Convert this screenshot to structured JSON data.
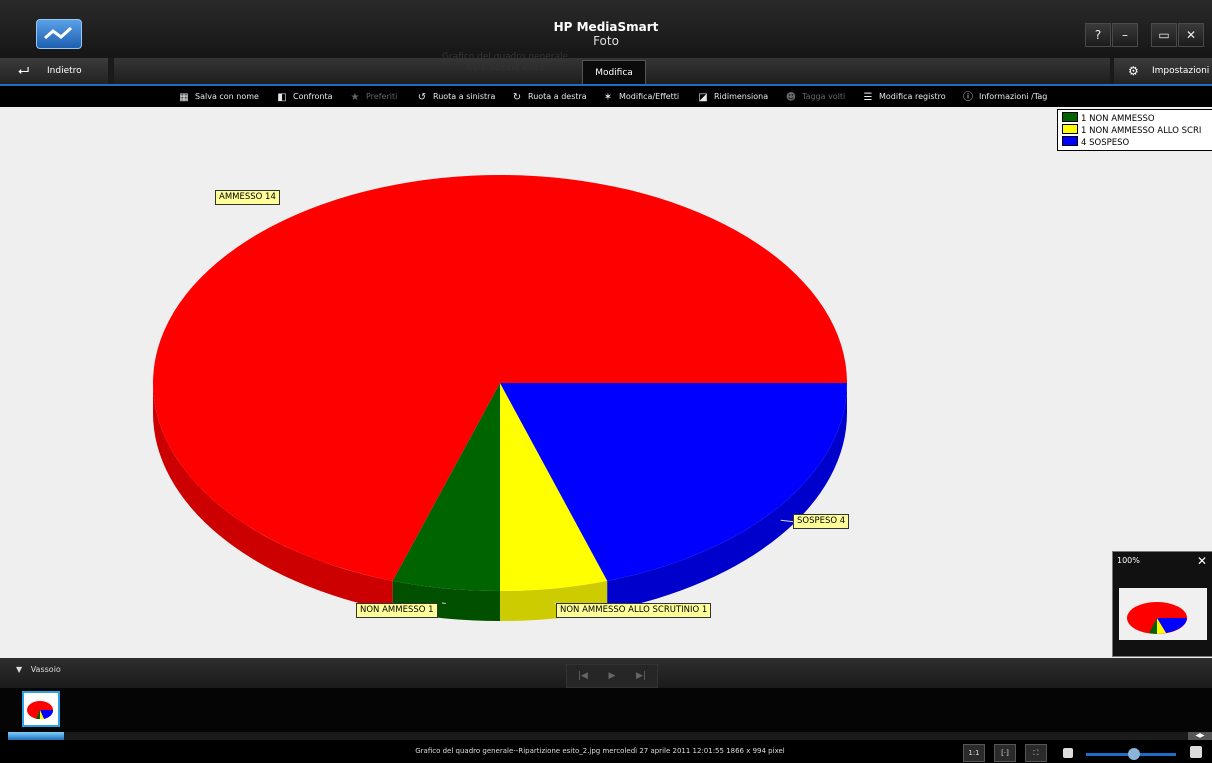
{
  "window": {
    "app_name": "HP MediaSmart",
    "section": "Foto",
    "help_label": "?",
    "minimize_label": "–",
    "restore_label": "▭",
    "close_label": "✕"
  },
  "nav": {
    "back_label": "Indietro",
    "ghost_title_1": "Grafico del quadro generale",
    "ghost_title_2": "Ripartizione esito",
    "active_tab": "Modifica",
    "settings_label": "Impostazioni"
  },
  "toolbar": {
    "items": [
      {
        "label": "Salva con nome",
        "icon": "save-as-icon",
        "enabled": true
      },
      {
        "label": "Confronta",
        "icon": "compare-icon",
        "enabled": true
      },
      {
        "label": "Preferiti",
        "icon": "star-icon",
        "enabled": false
      },
      {
        "label": "Ruota a sinistra",
        "icon": "rotate-left-icon",
        "enabled": true
      },
      {
        "label": "Ruota a destra",
        "icon": "rotate-right-icon",
        "enabled": true
      },
      {
        "label": "Modifica/Effetti",
        "icon": "magic-wand-icon",
        "enabled": true
      },
      {
        "label": "Ridimensiona",
        "icon": "resize-icon",
        "enabled": true
      },
      {
        "label": "Tagga volti",
        "icon": "face-tag-icon",
        "enabled": false
      },
      {
        "label": "Modifica registro",
        "icon": "list-icon",
        "enabled": true
      },
      {
        "label": "Informazioni /Tag",
        "icon": "info-icon",
        "enabled": true
      }
    ]
  },
  "chart_data": {
    "type": "pie",
    "categories": [
      "AMMESSO",
      "NON AMMESSO",
      "NON AMMESSO ALLO SCRUTINIO",
      "SOSPESO"
    ],
    "values": [
      14,
      1,
      1,
      4
    ],
    "colors": [
      "#ff0000",
      "#006400",
      "#ffff00",
      "#0000ff"
    ],
    "data_labels": [
      "AMMESSO 14",
      "NON AMMESSO 1",
      "NON AMMESSO ALLO SCRUTINIO 1",
      "SOSPESO 4"
    ],
    "legend": {
      "placement": "top-right",
      "entries": [
        {
          "label": "1 NON AMMESSO",
          "color": "#006400"
        },
        {
          "label": "1 NON AMMESSO ALLO SCRI",
          "color": "#ffff00"
        },
        {
          "label": "4 SOSPESO",
          "color": "#0000ff"
        }
      ]
    },
    "three_d": true
  },
  "navigator": {
    "zoom": "100%",
    "close_label": "✕"
  },
  "tray": {
    "label": "Vassoio",
    "prev_label": "|◀",
    "play_label": "▶",
    "next_label": "▶|"
  },
  "status": {
    "text": "Grafico del quadro generale--Ripartizione esito_2.jpg mercoledì 27 aprile 2011 12:01:55 1866 x 994 pixel",
    "actual_size_label": "1:1",
    "fit_label": "[·]",
    "fullscreen_label": "⛶"
  }
}
